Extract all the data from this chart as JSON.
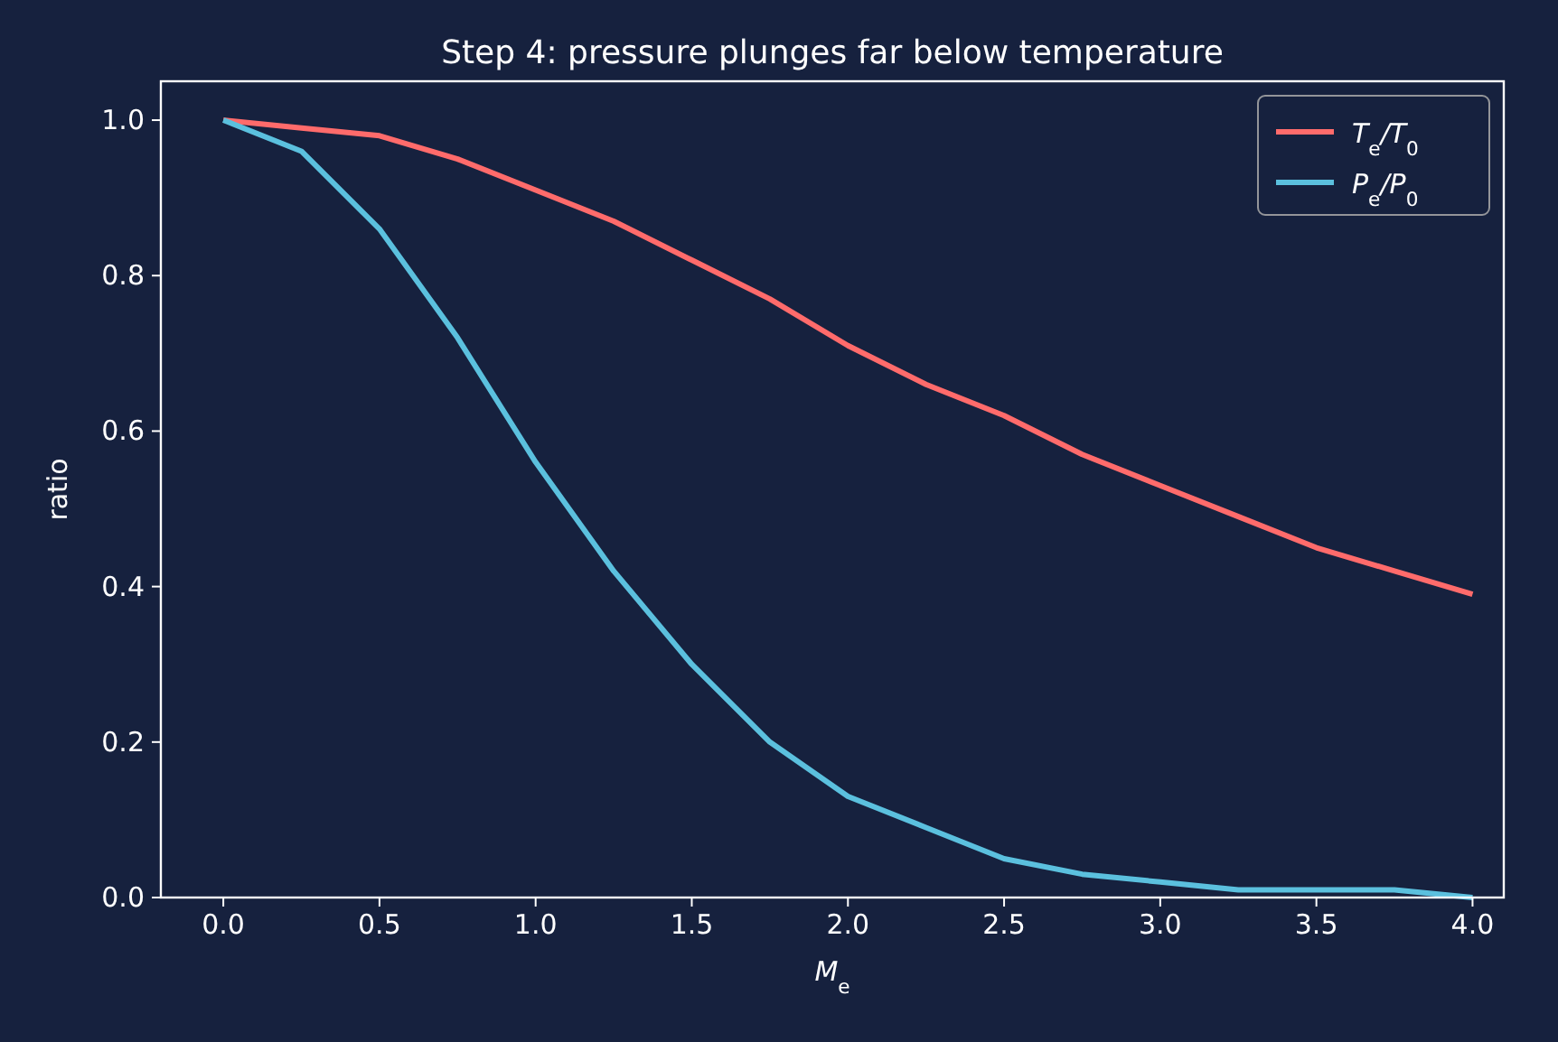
{
  "chart_data": {
    "type": "line",
    "title": "Step 4: pressure plunges far below temperature",
    "xlabel": "M$_{e}$",
    "ylabel": "ratio",
    "x": [
      0,
      0.25,
      0.5,
      0.75,
      1,
      1.25,
      1.5,
      1.75,
      2,
      2.25,
      2.5,
      2.75,
      3,
      3.25,
      3.5,
      3.75,
      4
    ],
    "series": [
      {
        "name": "T$_{e}$/T$_{0}$",
        "color": "#ff6b6b",
        "values": [
          1,
          0.99,
          0.98,
          0.95,
          0.91,
          0.87,
          0.82,
          0.77,
          0.71,
          0.66,
          0.62,
          0.57,
          0.53,
          0.49,
          0.45,
          0.42,
          0.39
        ]
      },
      {
        "name": "P$_{e}$/P$_{0}$",
        "color": "#5bc0de",
        "values": [
          1,
          0.96,
          0.86,
          0.72,
          0.56,
          0.42,
          0.3,
          0.2,
          0.13,
          0.09,
          0.05,
          0.03,
          0.02,
          0.01,
          0.01,
          0.01,
          0
        ]
      }
    ],
    "xlim": [
      -0.2,
      4.1
    ],
    "ylim": [
      0,
      1.05
    ],
    "xticks": [
      {
        "value": 0,
        "label": "0.0"
      },
      0.5,
      {
        "value": 1,
        "label": "1.0"
      },
      1.5,
      {
        "value": 2,
        "label": "2.0"
      },
      2.5,
      {
        "value": 3,
        "label": "3.0"
      },
      3.5,
      {
        "value": 4,
        "label": "4.0"
      }
    ],
    "yticks": [
      {
        "value": 0,
        "label": "0.0"
      },
      0.2,
      0.4,
      0.6,
      0.8,
      {
        "value": 1,
        "label": "1.0"
      }
    ],
    "grid": false,
    "legend": "top right",
    "marker": "none",
    "line_style": "solid"
  }
}
